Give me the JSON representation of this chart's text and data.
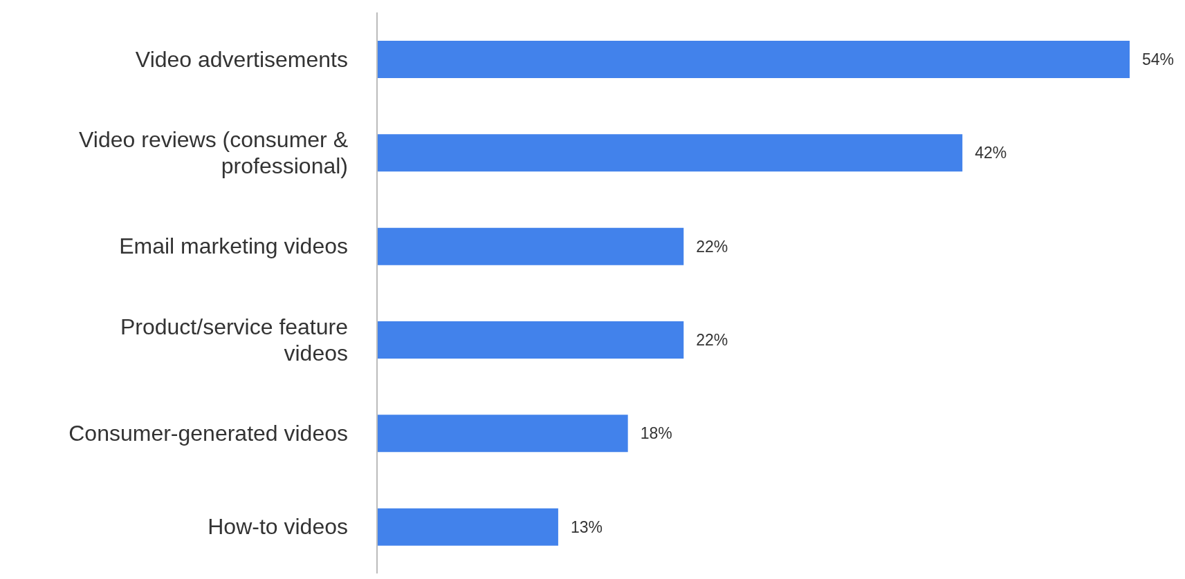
{
  "chart_data": {
    "type": "bar",
    "orientation": "horizontal",
    "categories": [
      "Video advertisements",
      "Video reviews (consumer & professional)",
      "Email marketing videos",
      "Product/service feature videos",
      "Consumer-generated videos",
      "How-to videos"
    ],
    "values": [
      54,
      42,
      22,
      22,
      18,
      13
    ],
    "value_labels": [
      "54%",
      "42%",
      "22%",
      "22%",
      "18%",
      "13%"
    ],
    "color": "#4282eb"
  }
}
